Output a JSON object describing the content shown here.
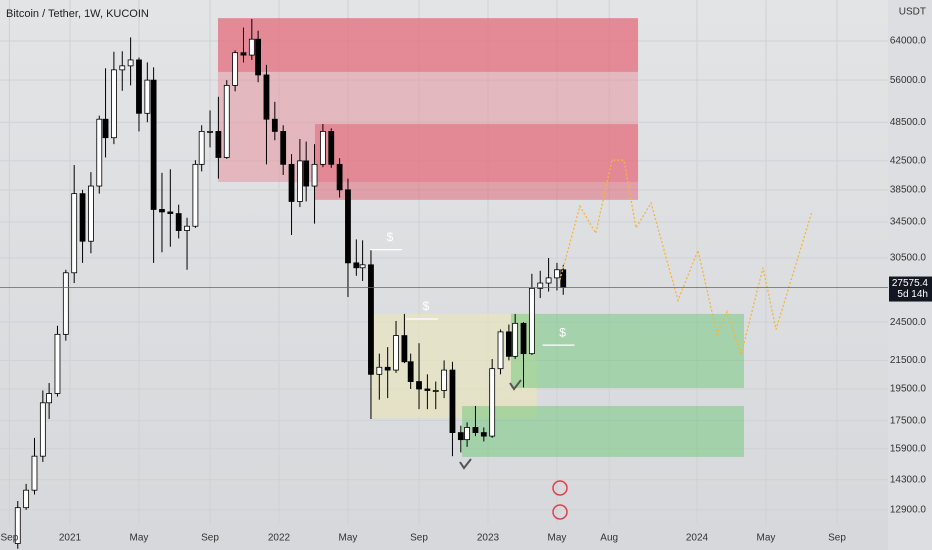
{
  "chart_data": {
    "type": "candlestick",
    "title": "Bitcoin / Tether, 1W, KUCOIN",
    "y_unit": "USDT",
    "log_scale": true,
    "grid": true,
    "up_color": "#ffffff",
    "down_color": "#000000",
    "xlim": [
      2020.665,
      2024.914
    ],
    "ylim": [
      11250,
      73630
    ],
    "xticks": [
      {
        "value": 2020.71,
        "label": "Sep"
      },
      2021,
      {
        "value": 2021.33,
        "label": "May"
      },
      {
        "value": 2021.67,
        "label": "Sep"
      },
      2022,
      {
        "value": 2022.33,
        "label": "May"
      },
      {
        "value": 2022.67,
        "label": "Sep"
      },
      2023,
      {
        "value": 2023.33,
        "label": "May"
      },
      {
        "value": 2023.58,
        "label": "Aug"
      },
      2024,
      {
        "value": 2024.33,
        "label": "May"
      },
      {
        "value": 2024.67,
        "label": "Sep"
      }
    ],
    "yticks": [
      {
        "value": 64000,
        "label": "64000.0"
      },
      {
        "value": 56000,
        "label": "56000.0"
      },
      {
        "value": 48500,
        "label": "48500.0"
      },
      {
        "value": 42500,
        "label": "42500.0"
      },
      {
        "value": 38500,
        "label": "38500.0"
      },
      {
        "value": 34500,
        "label": "34500.0"
      },
      {
        "value": 30500,
        "label": "30500.0"
      },
      {
        "value": 24500,
        "label": "24500.0"
      },
      {
        "value": 21500,
        "label": "21500.0"
      },
      {
        "value": 19500,
        "label": "19500.0"
      },
      {
        "value": 17500,
        "label": "17500.0"
      },
      {
        "value": 15900,
        "label": "15900.0"
      },
      {
        "value": 14300,
        "label": "14300.0"
      },
      {
        "value": 12900,
        "label": "12900.0"
      }
    ],
    "x": [
      2020.75,
      2020.79,
      2020.83,
      2020.87,
      2020.9,
      2020.94,
      2020.98,
      2021.02,
      2021.06,
      2021.1,
      2021.14,
      2021.17,
      2021.21,
      2021.25,
      2021.29,
      2021.33,
      2021.37,
      2021.4,
      2021.44,
      2021.48,
      2021.52,
      2021.56,
      2021.6,
      2021.63,
      2021.67,
      2021.71,
      2021.75,
      2021.79,
      2021.83,
      2021.87,
      2021.9,
      2021.94,
      2021.98,
      2022.02,
      2022.06,
      2022.1,
      2022.13,
      2022.17,
      2022.21,
      2022.25,
      2022.29,
      2022.33,
      2022.37,
      2022.4,
      2022.44,
      2022.48,
      2022.52,
      2022.56,
      2022.6,
      2022.63,
      2022.67,
      2022.71,
      2022.75,
      2022.79,
      2022.83,
      2022.87,
      2022.9,
      2022.94,
      2022.98,
      2023.02,
      2023.06,
      2023.1,
      2023.13,
      2023.17,
      2023.21,
      2023.25,
      2023.29,
      2023.33,
      2023.36
    ],
    "open": [
      11500,
      13000,
      13800,
      15500,
      18600,
      19200,
      23500,
      29000,
      38000,
      32300,
      39000,
      49000,
      46000,
      58000,
      58800,
      60000,
      50000,
      56000,
      36000,
      35700,
      35500,
      33500,
      34000,
      42000,
      47000,
      47000,
      43000,
      55000,
      61500,
      61000,
      64400,
      57000,
      49000,
      47000,
      42000,
      37000,
      42500,
      39000,
      42000,
      47000,
      42000,
      38500,
      30000,
      29500,
      29800,
      20500,
      21000,
      20800,
      23400,
      21400,
      20000,
      19500,
      19400,
      19400,
      20800,
      16800,
      16400,
      17100,
      16800,
      16600,
      20900,
      23700,
      21800,
      24400,
      22000,
      27500,
      28000,
      28500,
      29300
    ],
    "high": [
      13300,
      14100,
      16500,
      19400,
      19900,
      24200,
      29300,
      41900,
      38500,
      40900,
      49600,
      58300,
      61700,
      61800,
      64800,
      60500,
      59500,
      58500,
      40800,
      41300,
      36600,
      35000,
      42600,
      48000,
      50500,
      52900,
      56000,
      62000,
      67000,
      69000,
      66300,
      59000,
      52000,
      48000,
      43500,
      45800,
      45400,
      45000,
      48200,
      47500,
      42900,
      40000,
      32500,
      32400,
      31400,
      22000,
      22500,
      24600,
      25200,
      22000,
      22800,
      20500,
      20000,
      21500,
      21400,
      17200,
      17400,
      18400,
      17100,
      21600,
      23900,
      24300,
      25200,
      24500,
      28900,
      29200,
      30500,
      30000,
      29800
    ],
    "low": [
      11300,
      12900,
      13600,
      15200,
      17600,
      19000,
      23000,
      28000,
      30000,
      31000,
      38000,
      43000,
      45000,
      54000,
      55000,
      47000,
      48500,
      30000,
      31100,
      31700,
      32600,
      29300,
      33800,
      41000,
      44500,
      40000,
      42800,
      53900,
      59500,
      60000,
      55600,
      42000,
      45600,
      40500,
      33000,
      36300,
      37000,
      34300,
      41600,
      41500,
      37500,
      26700,
      28700,
      28200,
      17600,
      18800,
      18900,
      20600,
      21300,
      19500,
      18200,
      18200,
      18200,
      18900,
      15500,
      15700,
      16000,
      16600,
      16300,
      16500,
      20500,
      21500,
      21600,
      19600,
      21900,
      26600,
      27200,
      27300,
      26900
    ],
    "close": [
      13000,
      13800,
      15500,
      18600,
      19200,
      23500,
      29000,
      38000,
      32300,
      39000,
      49000,
      46000,
      58000,
      58800,
      60000,
      50000,
      56000,
      36000,
      35700,
      35500,
      33500,
      34000,
      42000,
      47000,
      47000,
      43000,
      55000,
      61500,
      61000,
      64400,
      57000,
      49000,
      47000,
      42000,
      37000,
      42500,
      39000,
      42000,
      47000,
      42000,
      38500,
      30000,
      29500,
      29800,
      20500,
      21000,
      20800,
      23400,
      21400,
      20000,
      19500,
      19400,
      19400,
      20800,
      16800,
      16400,
      17100,
      16800,
      16600,
      20900,
      23700,
      21800,
      24400,
      22000,
      27500,
      28000,
      28500,
      29300,
      27575
    ],
    "last_price": 27575.4,
    "countdown": "5d 14h",
    "zones": [
      {
        "x0": 2021.708,
        "x1": 2023.718,
        "top": 69200,
        "bottom": 39550,
        "color": "rgba(232,150,160,0.55)"
      },
      {
        "x0": 2021.708,
        "x1": 2023.718,
        "top": 69200,
        "bottom": 57600,
        "color": "rgba(226,82,100,0.45)"
      },
      {
        "x0": 2022.172,
        "x1": 2023.718,
        "top": 48200,
        "bottom": 37200,
        "color": "rgba(226,82,100,0.45)"
      },
      {
        "x0": 2022.445,
        "x1": 2023.234,
        "top": 25200,
        "bottom": 17660,
        "color": "rgba(232,228,190,0.7)"
      },
      {
        "x0": 2023.11,
        "x1": 2024.225,
        "top": 25200,
        "bottom": 19570,
        "color": "rgba(110,200,120,0.5)"
      },
      {
        "x0": 2022.876,
        "x1": 2024.225,
        "top": 18400,
        "bottom": 15460,
        "color": "rgba(110,200,120,0.5)"
      }
    ],
    "projection": {
      "color": "#f5b53c",
      "x": [
        2023.344,
        2023.44,
        2023.516,
        2023.593,
        2023.651,
        2023.708,
        2023.78,
        2023.909,
        2024.005,
        2024.096,
        2024.144,
        2024.211,
        2024.316,
        2024.378,
        2024.55
      ],
      "values": [
        28300,
        36400,
        33200,
        42600,
        42600,
        33800,
        36800,
        26400,
        31300,
        23500,
        25400,
        21900,
        29500,
        23900,
        35700
      ]
    },
    "markers": [
      {
        "text": "$",
        "x": 2022.703,
        "value": 25800
      },
      {
        "text": "$",
        "x": 2022.531,
        "value": 32700
      },
      {
        "text": "$",
        "x": 2023.357,
        "value": 23600
      }
    ]
  }
}
